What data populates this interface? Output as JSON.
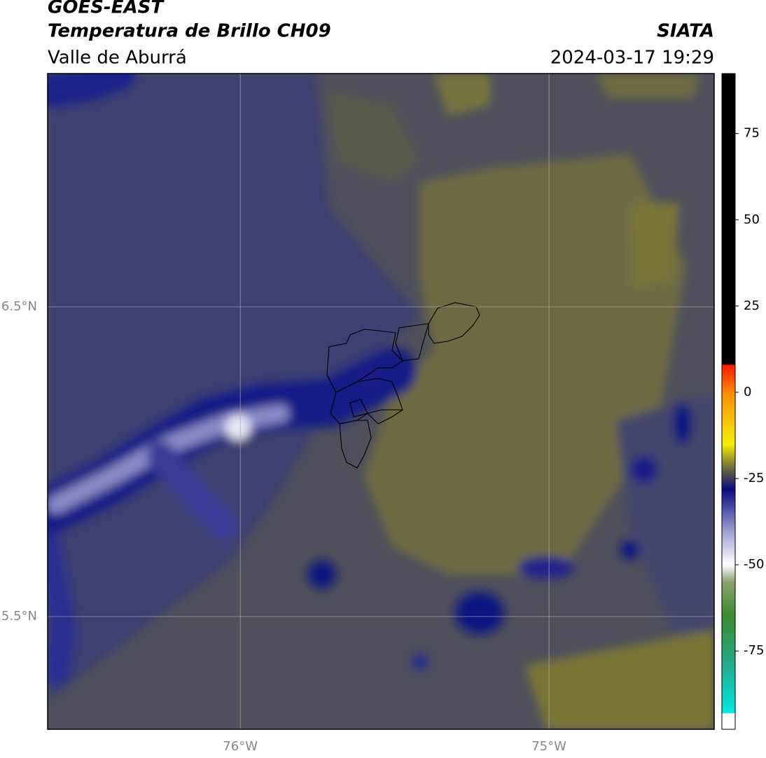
{
  "header": {
    "title_top": "GOES-EAST",
    "title": "Temperatura de Brillo CH09",
    "agency": "SIATA",
    "subtitle": "Valle de Aburrá",
    "datetime": "2024-03-17 19:29"
  },
  "map": {
    "xlim": [
      -76.624,
      -74.465
    ],
    "ylim": [
      5.136,
      7.253
    ],
    "xticks": [
      {
        "value": -76,
        "label": "76°W"
      },
      {
        "value": -75,
        "label": "75°W"
      }
    ],
    "yticks": [
      {
        "value": 6.5,
        "label": "6.5°N"
      },
      {
        "value": 5.5,
        "label": "5.5°N"
      }
    ],
    "grid": true,
    "colorbar": {
      "lim": [
        -97.7,
        92.4
      ],
      "ticks": [
        75,
        50,
        25,
        0,
        -25,
        -50,
        -75
      ]
    }
  }
}
